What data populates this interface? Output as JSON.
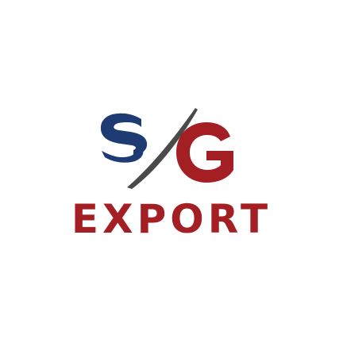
{
  "logo": {
    "monogram": "SG",
    "wordmark": "EXPORT",
    "colors": {
      "navy": "#1f3b73",
      "red": "#a41f23",
      "swoosh_grey": "#4a4a4a",
      "background": "#ffffff"
    }
  }
}
